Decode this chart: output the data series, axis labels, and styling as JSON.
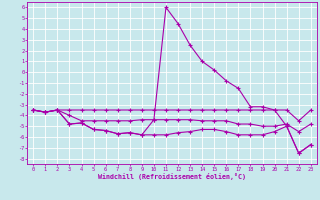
{
  "x": [
    0,
    1,
    2,
    3,
    4,
    5,
    6,
    7,
    8,
    9,
    10,
    11,
    12,
    13,
    14,
    15,
    16,
    17,
    18,
    19,
    20,
    21,
    22,
    23
  ],
  "line_flat": [
    -3.5,
    -3.7,
    -3.5,
    -3.5,
    -3.5,
    -3.5,
    -3.5,
    -3.5,
    -3.5,
    -3.5,
    -3.5,
    -3.5,
    -3.5,
    -3.5,
    -3.5,
    -3.5,
    -3.5,
    -3.5,
    -3.5,
    -3.5,
    -3.5,
    -3.5,
    -4.5,
    -3.5
  ],
  "line_mid": [
    -3.5,
    -3.7,
    -3.5,
    -4.0,
    -4.5,
    -4.5,
    -4.5,
    -4.5,
    -4.5,
    -4.4,
    -4.4,
    -4.4,
    -4.4,
    -4.4,
    -4.5,
    -4.5,
    -4.5,
    -4.8,
    -4.8,
    -5.0,
    -5.0,
    -4.8,
    -5.5,
    -4.8
  ],
  "line_low": [
    -3.5,
    -3.7,
    -3.5,
    -4.8,
    -4.7,
    -5.3,
    -5.4,
    -5.7,
    -5.6,
    -5.8,
    -5.8,
    -5.8,
    -5.6,
    -5.5,
    -5.3,
    -5.3,
    -5.5,
    -5.8,
    -5.8,
    -5.8,
    -5.5,
    -5.0,
    -7.5,
    -6.7
  ],
  "line_peak": [
    -3.5,
    -3.7,
    -3.5,
    -4.8,
    -4.7,
    -5.3,
    -5.4,
    -5.7,
    -5.6,
    -5.8,
    -4.4,
    6.0,
    4.5,
    2.5,
    1.0,
    0.2,
    -0.8,
    -1.5,
    -3.2,
    -3.2,
    -3.5,
    -5.0,
    -7.5,
    -6.7
  ],
  "ylim": [
    -8.5,
    6.5
  ],
  "xlim": [
    -0.5,
    23.5
  ],
  "yticks": [
    -8,
    -7,
    -6,
    -5,
    -4,
    -3,
    -2,
    -1,
    0,
    1,
    2,
    3,
    4,
    5,
    6
  ],
  "xticks": [
    0,
    1,
    2,
    3,
    4,
    5,
    6,
    7,
    8,
    9,
    10,
    11,
    12,
    13,
    14,
    15,
    16,
    17,
    18,
    19,
    20,
    21,
    22,
    23
  ],
  "color": "#aa00aa",
  "bg_color": "#c8e8ec",
  "grid_color": "#ffffff",
  "xlabel": "Windchill (Refroidissement éolien,°C)"
}
